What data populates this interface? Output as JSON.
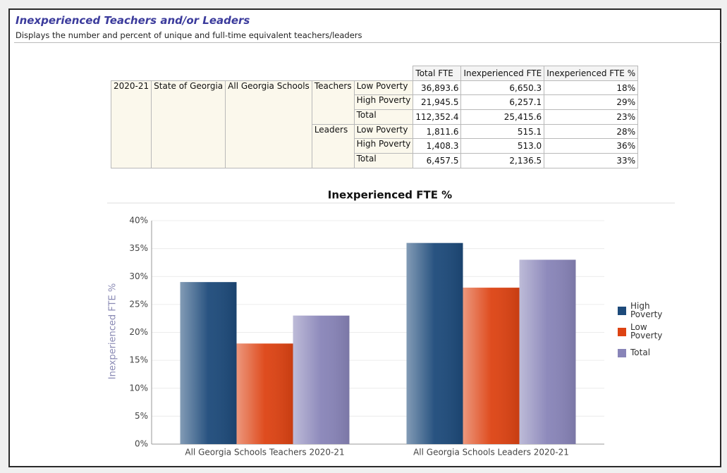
{
  "header": {
    "title": "Inexperienced Teachers and/or Leaders",
    "subtitle": "Displays the number and percent of unique and full-time equivalent teachers/leaders"
  },
  "table": {
    "columns": [
      "Total FTE",
      "Inexperienced FTE",
      "Inexperienced FTE %"
    ],
    "year": "2020-21",
    "state": "State of Georgia",
    "school": "All Georgia Schools",
    "groups": [
      {
        "name": "Teachers",
        "rows": [
          {
            "label": "Low Poverty",
            "cells": [
              "36,893.6",
              "6,650.3",
              "18%"
            ]
          },
          {
            "label": "High Poverty",
            "cells": [
              "21,945.5",
              "6,257.1",
              "29%"
            ]
          },
          {
            "label": "Total",
            "cells": [
              "112,352.4",
              "25,415.6",
              "23%"
            ]
          }
        ]
      },
      {
        "name": "Leaders",
        "rows": [
          {
            "label": "Low Poverty",
            "cells": [
              "1,811.6",
              "515.1",
              "28%"
            ]
          },
          {
            "label": "High Poverty",
            "cells": [
              "1,408.3",
              "513.0",
              "36%"
            ]
          },
          {
            "label": "Total",
            "cells": [
              "6,457.5",
              "2,136.5",
              "33%"
            ]
          }
        ]
      }
    ]
  },
  "chart_data": {
    "type": "bar",
    "title": "Inexperienced FTE %",
    "y_label": "Inexperienced FTE %",
    "categories": [
      "All Georgia Schools Teachers 2020-21",
      "All Georgia Schools Leaders 2020-21"
    ],
    "series": [
      {
        "name": "High Poverty",
        "color": "#1d4a7a",
        "values": [
          29,
          36
        ]
      },
      {
        "name": "Low Poverty",
        "color": "#dd4313",
        "values": [
          18,
          28
        ]
      },
      {
        "name": "Total",
        "color": "#8884b8",
        "values": [
          23,
          33
        ]
      }
    ],
    "ylim": [
      0,
      40
    ],
    "yticks": [
      {
        "value": 0,
        "label": "0%"
      },
      {
        "value": 5,
        "label": "5%"
      },
      {
        "value": 10,
        "label": "10%"
      },
      {
        "value": 15,
        "label": "15%"
      },
      {
        "value": 20,
        "label": "20%"
      },
      {
        "value": 25,
        "label": "25%"
      },
      {
        "value": 30,
        "label": "30%"
      },
      {
        "value": 35,
        "label": "35%"
      },
      {
        "value": 40,
        "label": "40%"
      }
    ],
    "grid": true,
    "legend": "right"
  }
}
